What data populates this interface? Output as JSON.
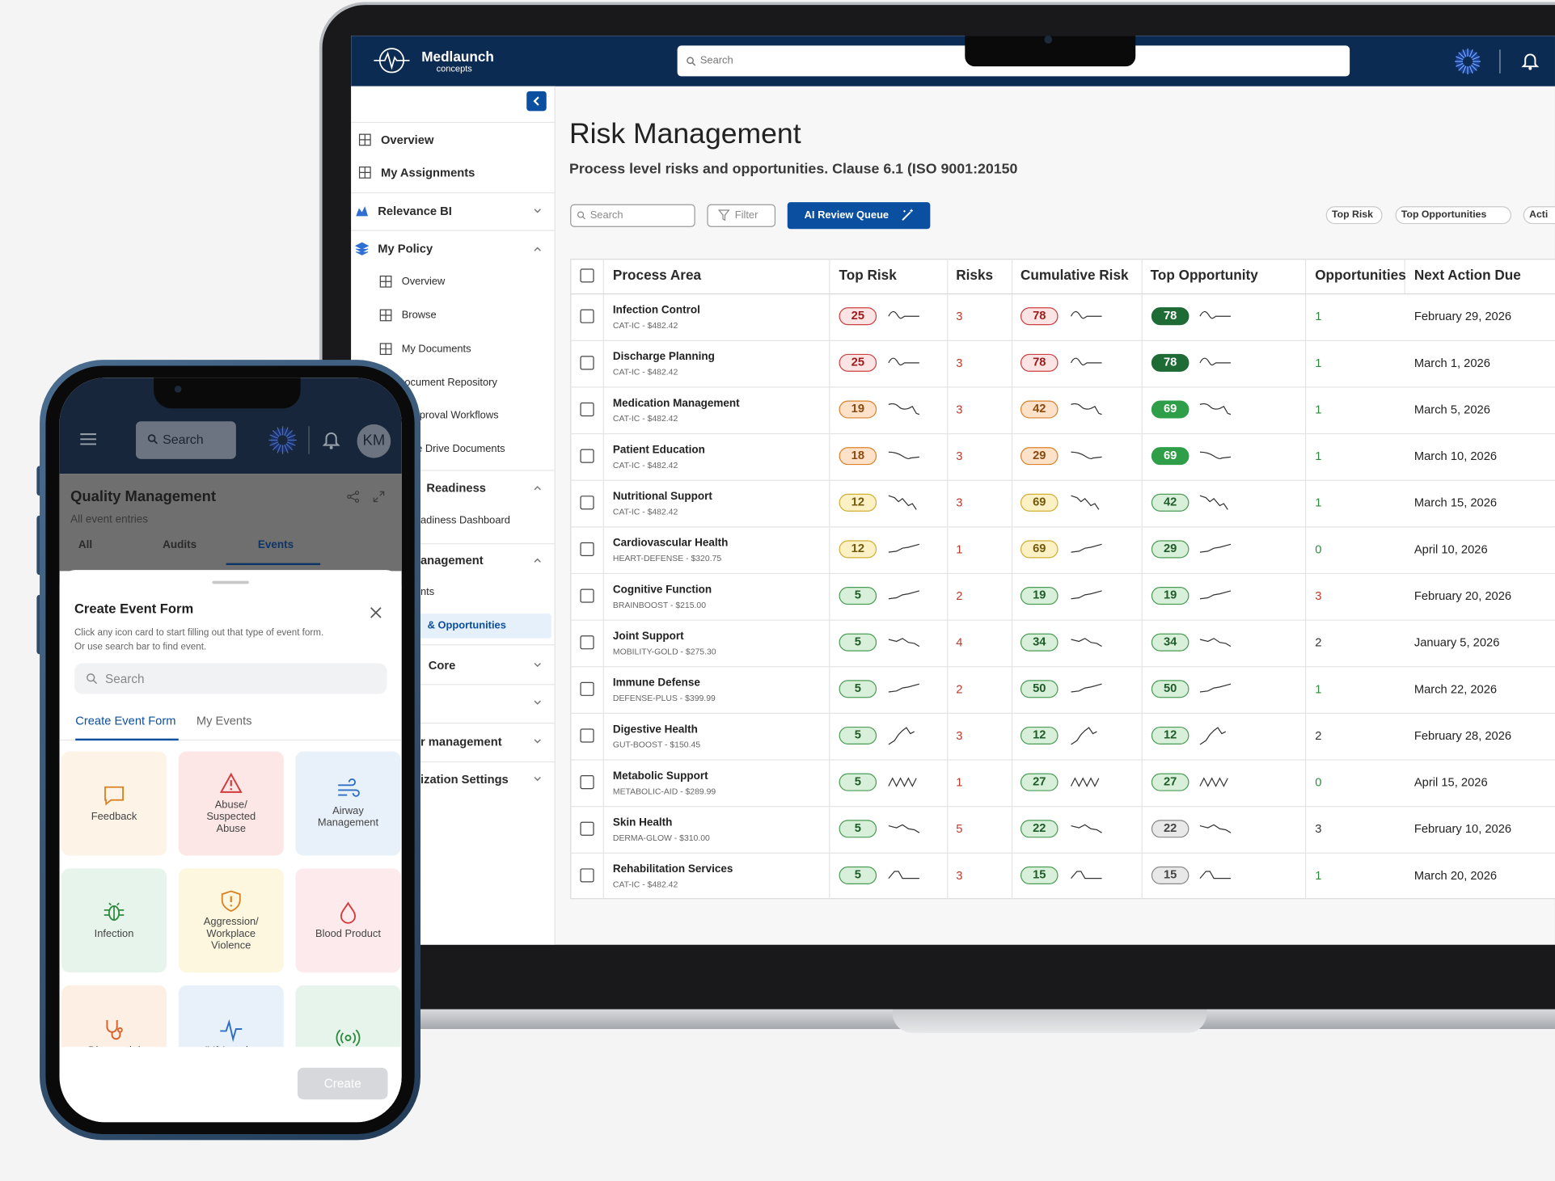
{
  "laptop": {
    "brand": {
      "name": "Medlaunch",
      "tagline": "concepts"
    },
    "search": "Search",
    "sidebar": [
      "Overview",
      "My Assignments",
      "Relevance BI",
      "My Policy",
      "Overview",
      "Browse",
      "My Documents",
      "ocument Repository",
      "proval Workflows",
      "e Drive Documents",
      "Readiness",
      "adiness Dashboard",
      "anagement",
      "nts",
      "& Opportunities",
      "Core",
      "r management",
      "ization Settings"
    ],
    "page": {
      "title": "Risk Management",
      "subtitle": "Process level risks and opportunities. Clause 6.1 (ISO 9001:20150",
      "search": "Search",
      "filter": "Filter",
      "ai_button": "AI Review Queue",
      "chips": [
        "Top Risk",
        "Top Opportunities",
        "Acti"
      ]
    },
    "table": {
      "columns": [
        "Process Area",
        "Top Risk",
        "Risks",
        "Cumulative Risk",
        "Top Opportunity",
        "Opportunities",
        "Next Action Due"
      ],
      "rows": [
        {
          "name": "Infection Control",
          "code": "CAT-IC - $482.42",
          "top_risk": 25,
          "top_risk_tone": "red",
          "risks": 3,
          "cumulative_risk": 78,
          "cumulative_risk_tone": "red",
          "top_opportunity": 78,
          "top_opportunity_tone": "darkgreen",
          "opportunities": 1,
          "opportunities_tone": "green",
          "next_action_due": "February 29, 2026"
        },
        {
          "name": "Discharge Planning",
          "code": "CAT-IC - $482.42",
          "top_risk": 25,
          "top_risk_tone": "red",
          "risks": 3,
          "cumulative_risk": 78,
          "cumulative_risk_tone": "red",
          "top_opportunity": 78,
          "top_opportunity_tone": "darkgreen",
          "opportunities": 1,
          "opportunities_tone": "green",
          "next_action_due": "March 1, 2026"
        },
        {
          "name": "Medication Management",
          "code": "CAT-IC - $482.42",
          "top_risk": 19,
          "top_risk_tone": "orange",
          "risks": 3,
          "cumulative_risk": 42,
          "cumulative_risk_tone": "orange",
          "top_opportunity": 69,
          "top_opportunity_tone": "midgreen",
          "opportunities": 1,
          "opportunities_tone": "green",
          "next_action_due": "March 5, 2026"
        },
        {
          "name": "Patient Education",
          "code": "CAT-IC - $482.42",
          "top_risk": 18,
          "top_risk_tone": "orange",
          "risks": 3,
          "cumulative_risk": 29,
          "cumulative_risk_tone": "orange",
          "top_opportunity": 69,
          "top_opportunity_tone": "midgreen",
          "opportunities": 1,
          "opportunities_tone": "green",
          "next_action_due": "March 10, 2026"
        },
        {
          "name": "Nutritional Support",
          "code": "CAT-IC - $482.42",
          "top_risk": 12,
          "top_risk_tone": "yellow",
          "risks": 3,
          "cumulative_risk": 69,
          "cumulative_risk_tone": "yellow",
          "top_opportunity": 42,
          "top_opportunity_tone": "green",
          "opportunities": 1,
          "opportunities_tone": "green",
          "next_action_due": "March 15, 2026"
        },
        {
          "name": "Cardiovascular Health",
          "code": "HEART-DEFENSE - $320.75",
          "top_risk": 12,
          "top_risk_tone": "yellow",
          "risks": 1,
          "cumulative_risk": 69,
          "cumulative_risk_tone": "yellow",
          "top_opportunity": 29,
          "top_opportunity_tone": "green",
          "opportunities": 0,
          "opportunities_tone": "green",
          "next_action_due": "April 10, 2026"
        },
        {
          "name": "Cognitive Function",
          "code": "BRAINBOOST - $215.00",
          "top_risk": 5,
          "top_risk_tone": "green",
          "risks": 2,
          "cumulative_risk": 19,
          "cumulative_risk_tone": "green",
          "top_opportunity": 19,
          "top_opportunity_tone": "green",
          "opportunities": 3,
          "opportunities_tone": "red",
          "next_action_due": "February 20, 2026"
        },
        {
          "name": "Joint Support",
          "code": "MOBILITY-GOLD - $275.30",
          "top_risk": 5,
          "top_risk_tone": "green",
          "risks": 4,
          "cumulative_risk": 34,
          "cumulative_risk_tone": "green",
          "top_opportunity": 34,
          "top_opportunity_tone": "green",
          "opportunities": 2,
          "opportunities_tone": "dark",
          "next_action_due": "January 5, 2026"
        },
        {
          "name": "Immune Defense",
          "code": "DEFENSE-PLUS - $399.99",
          "top_risk": 5,
          "top_risk_tone": "green",
          "risks": 2,
          "cumulative_risk": 50,
          "cumulative_risk_tone": "green",
          "top_opportunity": 50,
          "top_opportunity_tone": "green",
          "opportunities": 1,
          "opportunities_tone": "green",
          "next_action_due": "March 22, 2026"
        },
        {
          "name": "Digestive Health",
          "code": "GUT-BOOST - $150.45",
          "top_risk": 5,
          "top_risk_tone": "green",
          "risks": 3,
          "cumulative_risk": 12,
          "cumulative_risk_tone": "green",
          "top_opportunity": 12,
          "top_opportunity_tone": "green",
          "opportunities": 2,
          "opportunities_tone": "dark",
          "next_action_due": "February 28, 2026"
        },
        {
          "name": "Metabolic Support",
          "code": "METABOLIC-AID - $289.99",
          "top_risk": 5,
          "top_risk_tone": "green",
          "risks": 1,
          "cumulative_risk": 27,
          "cumulative_risk_tone": "green",
          "top_opportunity": 27,
          "top_opportunity_tone": "green",
          "opportunities": 0,
          "opportunities_tone": "green",
          "next_action_due": "April 15, 2026"
        },
        {
          "name": "Skin Health",
          "code": "DERMA-GLOW - $310.00",
          "top_risk": 5,
          "top_risk_tone": "green",
          "risks": 5,
          "cumulative_risk": 22,
          "cumulative_risk_tone": "green",
          "top_opportunity": 22,
          "top_opportunity_tone": "gray",
          "opportunities": 3,
          "opportunities_tone": "dark",
          "next_action_due": "February 10, 2026"
        },
        {
          "name": "Rehabilitation Services",
          "code": "CAT-IC - $482.42",
          "top_risk": 5,
          "top_risk_tone": "green",
          "risks": 3,
          "cumulative_risk": 15,
          "cumulative_risk_tone": "green",
          "top_opportunity": 15,
          "top_opportunity_tone": "gray",
          "opportunities": 1,
          "opportunities_tone": "green",
          "next_action_due": "March 20, 2026"
        }
      ]
    }
  },
  "phone": {
    "search": "Search",
    "avatar": "KM",
    "title": "Quality Management",
    "subtitle": "All event entries",
    "tabs": [
      "All",
      "Audits",
      "Events"
    ],
    "sheet": {
      "title": "Create Event Form",
      "description": "Click any icon card to start filling out that type of event form.\nOr use search bar to find event.",
      "search": "Search",
      "tabs": [
        "Create Event Form",
        "My Events"
      ],
      "cards": [
        "Feedback",
        "Abuse/\nSuspected\nAbuse",
        "Airway\nManagement",
        "Infection",
        "Aggression/\nWorkplace\nViolence",
        "Blood Product",
        "Diagnostic/",
        "IV/Vascular"
      ],
      "button": "Create"
    }
  }
}
